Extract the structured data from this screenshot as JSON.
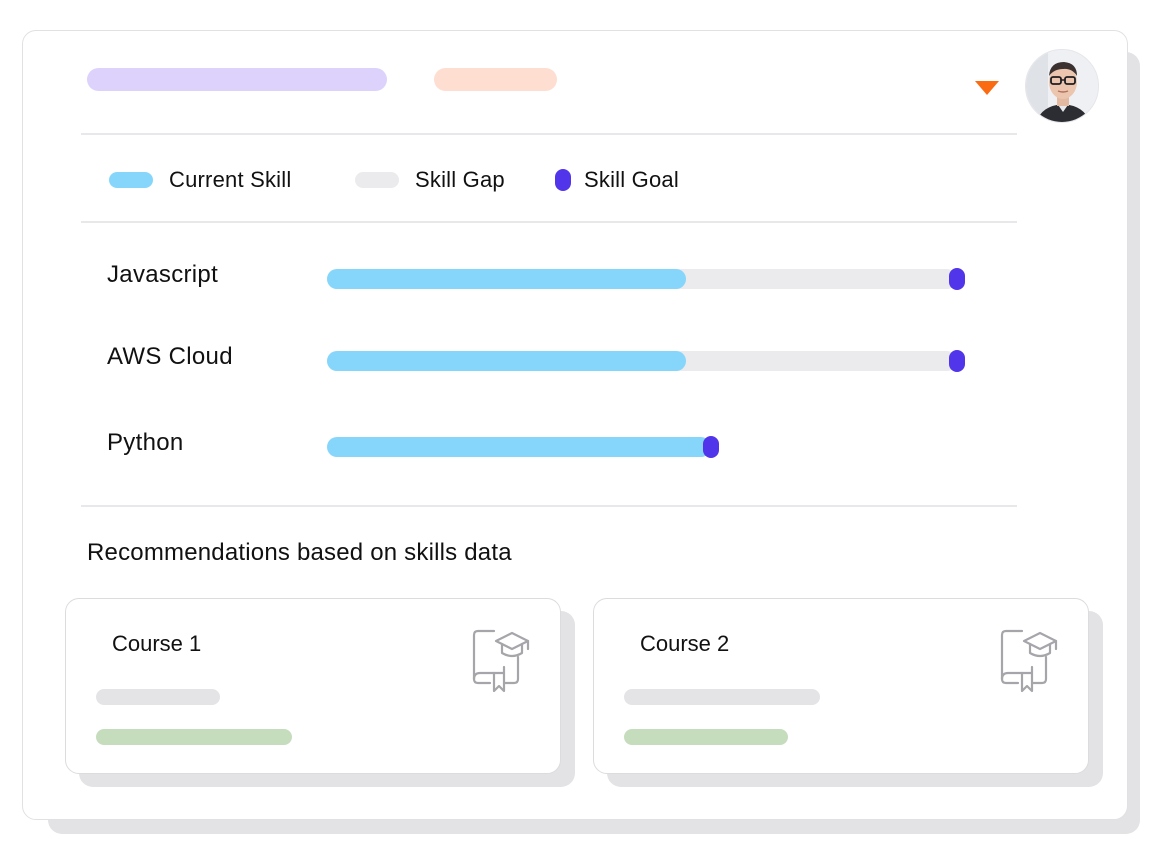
{
  "colors": {
    "title_pill": "#dcd2fb",
    "tag_pill": "#fdded0",
    "dropdown": "#fb6b12",
    "current_skill": "#86d6fb",
    "skill_gap": "#ebebed",
    "skill_goal": "#5135ea",
    "course_line_grey": "#e4e4e6",
    "course_line_green": "#c6ddbd",
    "icon_stroke": "#a6a6aa"
  },
  "header": {
    "dropdown_icon": "caret-down-icon",
    "avatar_icon": "user-avatar"
  },
  "legend": {
    "current": "Current Skill",
    "gap": "Skill Gap",
    "goal": "Skill Goal"
  },
  "skills": [
    {
      "name": "Javascript",
      "current_pct": 57,
      "goal_pct": 100
    },
    {
      "name": "AWS Cloud",
      "current_pct": 57,
      "goal_pct": 100
    },
    {
      "name": "Python",
      "current_pct": 61,
      "goal_pct": 61
    }
  ],
  "recommendations": {
    "title": "Recommendations based on skills data",
    "courses": [
      {
        "title": "Course 1",
        "icon": "certificate-graduation-icon"
      },
      {
        "title": "Course 2",
        "icon": "certificate-graduation-icon"
      }
    ]
  }
}
